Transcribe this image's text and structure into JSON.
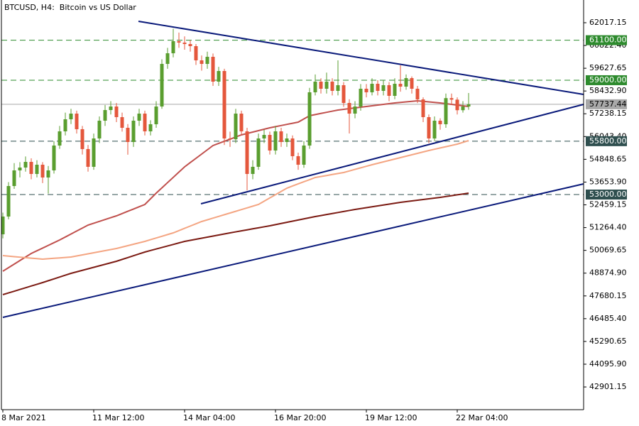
{
  "chart_data": {
    "type": "candlestick",
    "title": "BTCUSD, H4:  Bitcoin vs US Dollar",
    "categories": [
      "8 Mar 2021",
      null,
      null,
      null,
      null,
      null,
      null,
      null,
      null,
      null,
      null,
      null,
      null,
      null,
      null,
      null,
      "11 Mar 12:00",
      null,
      null,
      null,
      null,
      null,
      null,
      null,
      null,
      null,
      null,
      null,
      null,
      null,
      null,
      null,
      "14 Mar 04:00",
      null,
      null,
      null,
      null,
      null,
      null,
      null,
      null,
      null,
      null,
      null,
      null,
      null,
      null,
      null,
      "16 Mar 20:00",
      null,
      null,
      null,
      null,
      null,
      null,
      null,
      null,
      null,
      null,
      null,
      null,
      null,
      null,
      null,
      "19 Mar 12:00",
      null,
      null,
      null,
      null,
      null,
      null,
      null,
      null,
      null,
      null,
      null,
      null,
      null,
      null,
      null,
      "22 Mar 04:00",
      null,
      null
    ],
    "ylim": [
      41710,
      63209
    ],
    "yticks": [
      62017.15,
      {
        "value": 60822.4,
        "label": "60822.40"
      },
      59627.65,
      {
        "value": 58432.9,
        "label": "58432.90"
      },
      57238.15,
      {
        "value": 56043.4,
        "label": "56043.40"
      },
      54848.65,
      {
        "value": 53653.9,
        "label": "53653.90"
      },
      52459.15,
      {
        "value": 51264.4,
        "label": "51264.40"
      },
      50069.65,
      {
        "value": 48874.9,
        "label": "48874.90"
      },
      47680.15,
      {
        "value": 46485.4,
        "label": "46485.40"
      },
      45290.65,
      {
        "value": 44095.9,
        "label": "44095.90"
      },
      42901.15
    ],
    "candles": {
      "up_color": "#5a9e2f",
      "down_color": "#e4573c",
      "open": [
        50913,
        51845,
        53447,
        54267,
        54416,
        54714,
        54080,
        54565,
        53894,
        54267,
        55571,
        56316,
        56949,
        57247,
        56429,
        55386,
        54455,
        55943,
        56875,
        57434,
        57620,
        57062,
        56502,
        55757,
        56875,
        57247,
        56316,
        56689,
        57620,
        59856,
        60414,
        61048,
        60973,
        60899,
        60787,
        60042,
        59856,
        60228,
        58924,
        59483,
        55943,
        55900,
        57247,
        56316,
        54080,
        54455,
        55943,
        56129,
        55310,
        56316,
        55757,
        55943,
        55013,
        54565,
        55571,
        58365,
        58924,
        58552,
        58924,
        58440,
        58738,
        57806,
        57247,
        57620,
        58552,
        58365,
        58812,
        58440,
        58738,
        58179,
        58812,
        58663,
        59110,
        58552,
        57992,
        57062,
        55943,
        56875,
        56689,
        58060,
        57980,
        57426,
        57620
      ],
      "high": [
        52050,
        53650,
        54650,
        54700,
        55000,
        54900,
        54800,
        54700,
        54500,
        55800,
        56600,
        57300,
        57500,
        57400,
        56600,
        55600,
        56200,
        57100,
        57700,
        57900,
        57800,
        57300,
        56700,
        57100,
        57500,
        57400,
        56900,
        57900,
        60100,
        60700,
        61700,
        61500,
        61300,
        61100,
        60900,
        60300,
        60500,
        60400,
        59700,
        59600,
        56300,
        57500,
        57400,
        56500,
        54800,
        56200,
        56400,
        56300,
        56600,
        56500,
        56200,
        56100,
        55200,
        55800,
        58600,
        59300,
        59100,
        59400,
        59100,
        60042,
        58900,
        58000,
        57900,
        58800,
        58800,
        59100,
        59000,
        59000,
        58900,
        59100,
        59781,
        59300,
        59200,
        58700,
        58100,
        57200,
        57100,
        57000,
        58300,
        58300,
        58100,
        57900,
        58330
      ],
      "low": [
        50700,
        51700,
        53300,
        53900,
        54200,
        53800,
        53900,
        53600,
        53050,
        54100,
        55400,
        56100,
        56700,
        56200,
        55100,
        54200,
        54300,
        55700,
        56600,
        57200,
        56800,
        56300,
        55090,
        55500,
        56600,
        56100,
        56100,
        56500,
        57500,
        59600,
        60200,
        60700,
        60600,
        60500,
        59800,
        59500,
        59600,
        58700,
        58700,
        55600,
        55500,
        55700,
        56100,
        53220,
        53800,
        54300,
        55700,
        55100,
        55100,
        55500,
        55500,
        54800,
        54300,
        54400,
        55400,
        58200,
        58300,
        58300,
        58200,
        58200,
        57600,
        56205,
        57000,
        57400,
        58100,
        58200,
        58200,
        58200,
        57900,
        58000,
        58400,
        58500,
        58300,
        57800,
        56800,
        55700,
        55800,
        56400,
        56500,
        57700,
        57200,
        57300,
        57450
      ],
      "close": [
        51845,
        53447,
        54267,
        54416,
        54714,
        54080,
        54565,
        53894,
        54267,
        55571,
        56316,
        56949,
        57247,
        56429,
        55386,
        54455,
        55943,
        56875,
        57434,
        57620,
        57062,
        56502,
        55757,
        56875,
        57247,
        56316,
        56689,
        57620,
        59856,
        60414,
        61048,
        60973,
        60899,
        60787,
        60042,
        59856,
        60228,
        58924,
        59483,
        55943,
        55900,
        57247,
        56316,
        54080,
        54455,
        55943,
        56129,
        55310,
        56316,
        55757,
        55943,
        55013,
        54565,
        55571,
        58365,
        58924,
        58552,
        58924,
        58440,
        58738,
        57806,
        57247,
        57620,
        58552,
        58365,
        58812,
        58440,
        58738,
        58179,
        58812,
        58663,
        59110,
        58552,
        57992,
        57062,
        55943,
        56875,
        56689,
        58060,
        57980,
        57426,
        57620,
        57737.44
      ]
    },
    "moving_averages": [
      {
        "color": "#c0504d",
        "values": [
          48976,
          49162,
          49348,
          49535,
          49721,
          49907,
          50049,
          50190,
          50332,
          50473,
          50615,
          50771,
          50928,
          51084,
          51241,
          51397,
          51494,
          51591,
          51688,
          51785,
          51882,
          52001,
          52120,
          52240,
          52359,
          52478,
          52776,
          53074,
          53350,
          53626,
          53901,
          54177,
          54453,
          54677,
          54900,
          55124,
          55347,
          55571,
          55683,
          55795,
          55906,
          56018,
          56130,
          56204,
          56279,
          56353,
          56428,
          56502,
          56562,
          56621,
          56681,
          56740,
          56800,
          56968,
          57136,
          57196,
          57256,
          57315,
          57375,
          57434,
          57471,
          57508,
          57546,
          57583,
          57620,
          57657,
          57694,
          57732,
          57769,
          57806,
          57834,
          57862,
          57890,
          57918,
          57890,
          57862,
          57834,
          57806,
          57769,
          57732,
          57694,
          57657,
          57620
        ]
      },
      {
        "color": "#f4a582",
        "values": [
          49795,
          49768,
          49741,
          49714,
          49688,
          49661,
          49635,
          49609,
          49631,
          49654,
          49676,
          49699,
          49721,
          49777,
          49833,
          49889,
          49945,
          50000,
          50056,
          50112,
          50168,
          50243,
          50317,
          50392,
          50466,
          50541,
          50630,
          50720,
          50809,
          50899,
          50988,
          51107,
          51226,
          51346,
          51465,
          51584,
          51673,
          51763,
          51852,
          51942,
          52031,
          52120,
          52210,
          52299,
          52389,
          52478,
          52649,
          52821,
          52992,
          53164,
          53335,
          53447,
          53559,
          53671,
          53782,
          53894,
          53946,
          53998,
          54051,
          54103,
          54155,
          54237,
          54319,
          54401,
          54483,
          54565,
          54639,
          54714,
          54788,
          54863,
          54937,
          55012,
          55086,
          55161,
          55235,
          55310,
          55377,
          55444,
          55511,
          55578,
          55645,
          55738,
          55831
        ]
      },
      {
        "color": "#7b1a12",
        "values": [
          47746,
          47837,
          47927,
          48018,
          48108,
          48199,
          48290,
          48380,
          48477,
          48574,
          48670,
          48767,
          48864,
          48943,
          49022,
          49102,
          49181,
          49260,
          49339,
          49419,
          49498,
          49595,
          49692,
          49788,
          49885,
          49982,
          50062,
          50142,
          50222,
          50302,
          50381,
          50461,
          50541,
          50597,
          50653,
          50709,
          50765,
          50820,
          50876,
          50932,
          50988,
          51041,
          51094,
          51147,
          51201,
          51254,
          51307,
          51360,
          51421,
          51481,
          51542,
          51602,
          51663,
          51723,
          51784,
          51844,
          51897,
          51951,
          52004,
          52057,
          52110,
          52164,
          52217,
          52264,
          52310,
          52357,
          52404,
          52450,
          52497,
          52543,
          52590,
          52627,
          52664,
          52701,
          52739,
          52776,
          52813,
          52850,
          52895,
          52940,
          52984,
          53029,
          53074
        ]
      }
    ],
    "levels": [
      {
        "value": 61100,
        "label": "61100.00",
        "color": "#2e8b2e",
        "dashed": true
      },
      {
        "value": 59000,
        "label": "59000.00",
        "color": "#2e8b2e",
        "dashed": true
      },
      {
        "value": 57737.44,
        "label": "57737.44",
        "color": "#a8a8a8",
        "dashed": false
      },
      {
        "value": 55800,
        "label": "55800.00",
        "color": "#2f4f4f",
        "dashed": true
      },
      {
        "value": 53000,
        "label": "53000.00",
        "color": "#2f4f4f",
        "dashed": true
      }
    ]
  }
}
